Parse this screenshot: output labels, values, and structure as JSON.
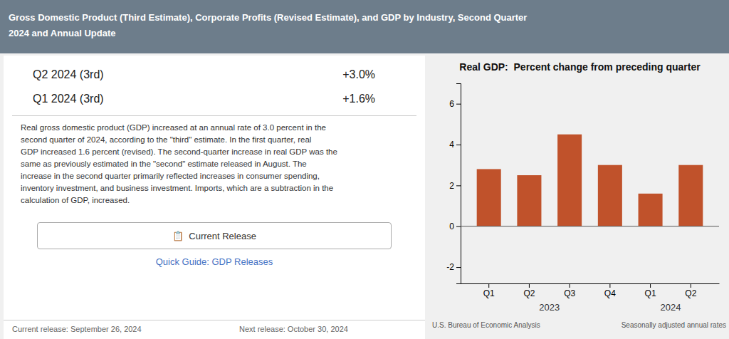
{
  "page": {
    "title_lines": [
      "Gross Domestic Product (Third Estimate), Corporate Profits (Revised Estimate), and GDP by Industry, Second Quarter",
      "2024 and Annual Update"
    ],
    "stats": [
      {
        "label": "Q2 2024 (3rd)",
        "value": "+3.0%"
      },
      {
        "label": "Q1 2024 (3rd)",
        "value": "+1.6%"
      }
    ],
    "body_lines": [
      "Real gross domestic product (GDP) increased at an annual rate of 3.0 percent in the",
      "second quarter of 2024, according to the \"third\" estimate. In the first quarter, real",
      "GDP increased 1.6 percent (revised). The second-quarter increase in real GDP was the",
      "same as previously estimated in the \"second\" estimate released in August. The",
      "increase in the second quarter primarily reflected increases in consumer spending,",
      "inventory investment, and business investment. Imports, which are a subtraction in the",
      "calculation of GDP, increased."
    ],
    "button_text": "📋  Current Release",
    "link_text": "Quick Guide: GDP Releases",
    "footer_left": "Current release: September 26, 2024",
    "footer_right": "Next release: October 30, 2024"
  },
  "chart_data": {
    "type": "bar",
    "title": "Real GDP:  Percent change from preceding quarter",
    "categories": [
      "Q1",
      "Q2",
      "Q3",
      "Q4",
      "Q1",
      "Q2"
    ],
    "values": [
      2.8,
      2.5,
      4.5,
      3.0,
      1.6,
      3.0
    ],
    "color": "#c0522b",
    "ylim": [
      -2.8,
      7.0
    ],
    "yticks": [
      -2,
      0,
      2,
      4,
      6
    ],
    "grid": false,
    "annotations": [
      "2023",
      "2024"
    ],
    "footnotes": [
      "U.S. Bureau of Economic Analysis",
      "Seasonally adjusted annual rates"
    ]
  }
}
